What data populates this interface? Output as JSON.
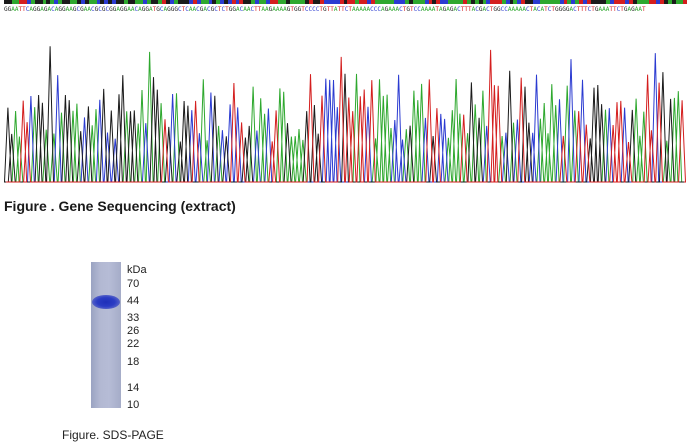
{
  "sequencing": {
    "sequence": "GGAATTCAGGAGACAGGAAGCGAACGCGCGGAGGAACAGGATGCAGGGCTCAACGACGCTCTGGACAACTTAAGAAAAGTGGTCCCCTGTTATTCTAAAAACCCAGAAACTGTCCAAAATAGAGACTTTACGACTGGCCAAAAACTACATCTGGGGACTTTCTGAAATTCTGAGAAT",
    "colors": {
      "A": "#2ea82e",
      "C": "#2b3bd1",
      "G": "#1b1b1b",
      "T": "#d41e1e"
    },
    "title": "Figure . Gene Sequencing (extract)"
  },
  "gel": {
    "unit_label": "kDa",
    "markers": [
      "70",
      "44",
      "33",
      "26",
      "22",
      "18",
      "14",
      "10"
    ],
    "caption": "Figure. SDS-PAGE"
  }
}
